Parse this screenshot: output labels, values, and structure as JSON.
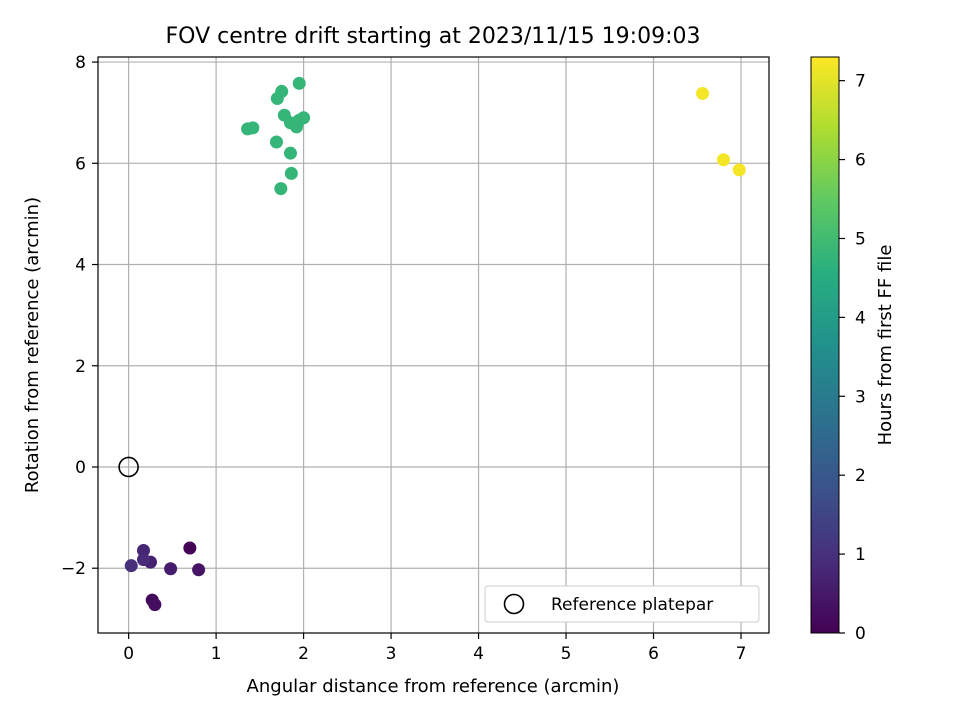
{
  "chart_data": {
    "type": "scatter",
    "title": "FOV centre drift starting at 2023/11/15 19:09:03",
    "xlabel": "Angular distance from reference (arcmin)",
    "ylabel": "Rotation from reference (arcmin)",
    "xlim": [
      -0.35,
      7.32
    ],
    "ylim": [
      -3.28,
      8.1
    ],
    "xticks": [
      0,
      1,
      2,
      3,
      4,
      5,
      6,
      7
    ],
    "xtick_labels": [
      "0",
      "1",
      "2",
      "3",
      "4",
      "5",
      "6",
      "7"
    ],
    "yticks": [
      -2,
      0,
      2,
      4,
      6,
      8
    ],
    "ytick_labels": [
      "−2",
      "0",
      "2",
      "4",
      "6",
      "8"
    ],
    "grid": true,
    "legend": {
      "location": "lower-right",
      "entries": [
        "Reference platepar"
      ]
    },
    "reference_point": {
      "x": 0,
      "y": 0
    },
    "colorbar": {
      "label": "Hours from first FF file",
      "range": [
        0,
        7.3
      ],
      "ticks": [
        0,
        1,
        2,
        3,
        4,
        5,
        6,
        7
      ],
      "tick_labels": [
        "0",
        "1",
        "2",
        "3",
        "4",
        "5",
        "6",
        "7"
      ],
      "colormap": "viridis"
    },
    "points": [
      {
        "x": 0.7,
        "y": -1.6,
        "hours": 0.05
      },
      {
        "x": 0.27,
        "y": -2.63,
        "hours": 0.15
      },
      {
        "x": 0.3,
        "y": -2.72,
        "hours": 0.25
      },
      {
        "x": 0.8,
        "y": -2.03,
        "hours": 0.4
      },
      {
        "x": 0.48,
        "y": -2.01,
        "hours": 0.55
      },
      {
        "x": 0.25,
        "y": -1.88,
        "hours": 0.65
      },
      {
        "x": 0.17,
        "y": -1.65,
        "hours": 0.75
      },
      {
        "x": 0.17,
        "y": -1.83,
        "hours": 0.85
      },
      {
        "x": 0.03,
        "y": -1.95,
        "hours": 0.95
      },
      {
        "x": 1.36,
        "y": 6.68,
        "hours": 4.8
      },
      {
        "x": 1.42,
        "y": 6.7,
        "hours": 4.8
      },
      {
        "x": 1.7,
        "y": 7.28,
        "hours": 4.8
      },
      {
        "x": 1.75,
        "y": 7.42,
        "hours": 4.8
      },
      {
        "x": 1.95,
        "y": 7.58,
        "hours": 4.8
      },
      {
        "x": 1.78,
        "y": 6.95,
        "hours": 4.8
      },
      {
        "x": 1.85,
        "y": 6.8,
        "hours": 4.8
      },
      {
        "x": 1.92,
        "y": 6.72,
        "hours": 4.8
      },
      {
        "x": 1.95,
        "y": 6.85,
        "hours": 4.8
      },
      {
        "x": 2.0,
        "y": 6.9,
        "hours": 4.8
      },
      {
        "x": 1.69,
        "y": 6.42,
        "hours": 4.8
      },
      {
        "x": 1.85,
        "y": 6.2,
        "hours": 4.8
      },
      {
        "x": 1.86,
        "y": 5.8,
        "hours": 4.8
      },
      {
        "x": 1.74,
        "y": 5.5,
        "hours": 4.8
      },
      {
        "x": 6.56,
        "y": 7.38,
        "hours": 7.2
      },
      {
        "x": 6.8,
        "y": 6.07,
        "hours": 7.2
      },
      {
        "x": 6.98,
        "y": 5.87,
        "hours": 7.2
      }
    ]
  }
}
